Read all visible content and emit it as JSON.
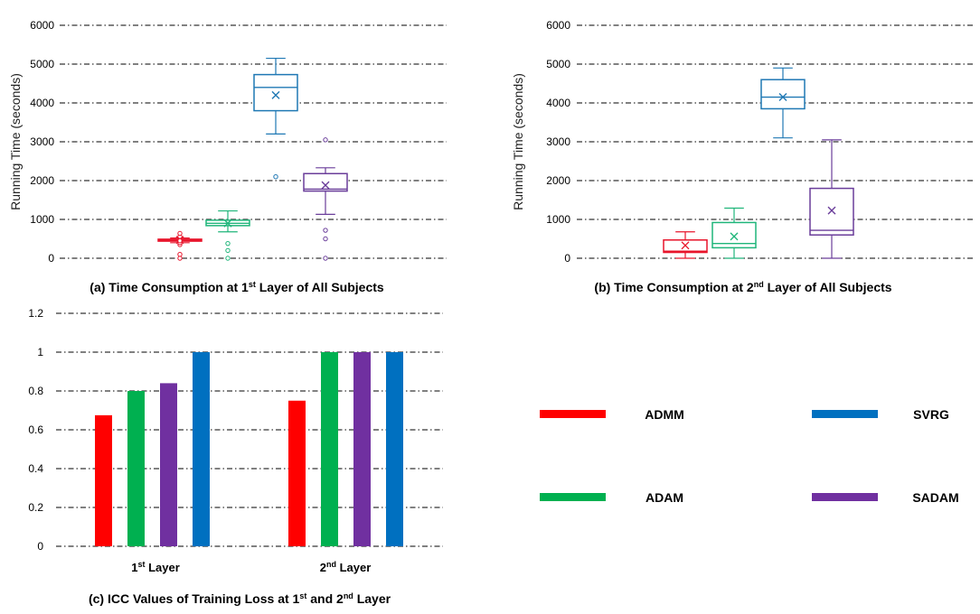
{
  "colors": {
    "ADMM": "#ff0000",
    "ADAM": "#00b050",
    "SADAM": "#7030a0",
    "SVRG": "#0070c0",
    "box_ADMM": "#e8142b",
    "box_ADAM": "#1fb57a",
    "box_SADAM": "#6a3d9a",
    "box_SVRG": "#1f78b4"
  },
  "legend": {
    "items": [
      {
        "name": "ADMM",
        "color": "#ff0000"
      },
      {
        "name": "SVRG",
        "color": "#0070c0"
      },
      {
        "name": "ADAM",
        "color": "#00b050"
      },
      {
        "name": "SADAM",
        "color": "#7030a0"
      }
    ]
  },
  "chart_data": [
    {
      "type": "box",
      "caption_prefix": "(a) Time Consumption at 1",
      "caption_sup": "st",
      "caption_suffix": " Layer of All Subjects",
      "ylabel": "Running Time (seconds)",
      "ylim": [
        0,
        6000
      ],
      "yticks": [
        "0",
        "1000",
        "2000",
        "3000",
        "4000",
        "5000",
        "6000"
      ],
      "grid": true,
      "series": [
        {
          "name": "ADMM",
          "whisker_low": 400,
          "q1": 440,
          "median": 470,
          "q3": 490,
          "whisker_high": 520,
          "mean": 470,
          "outliers": [
            0,
            100,
            350,
            400,
            450,
            560,
            640
          ]
        },
        {
          "name": "ADAM",
          "whisker_low": 680,
          "q1": 840,
          "median": 900,
          "q3": 980,
          "whisker_high": 1220,
          "mean": 900,
          "outliers": [
            0,
            200,
            380
          ]
        },
        {
          "name": "SVRG",
          "whisker_low": 3200,
          "q1": 3800,
          "median": 4400,
          "q3": 4730,
          "whisker_high": 5150,
          "mean": 4200,
          "outliers": [
            2100
          ]
        },
        {
          "name": "SADAM",
          "whisker_low": 1130,
          "q1": 1730,
          "median": 1780,
          "q3": 2180,
          "whisker_high": 2330,
          "mean": 1880,
          "outliers": [
            0,
            500,
            720,
            3050
          ]
        }
      ]
    },
    {
      "type": "box",
      "caption_prefix": "(b) Time Consumption at 2",
      "caption_sup": "nd",
      "caption_suffix": " Layer of All Subjects",
      "ylabel": "Running Time (seconds)",
      "ylim": [
        0,
        6000
      ],
      "yticks": [
        "0",
        "1000",
        "2000",
        "3000",
        "4000",
        "5000",
        "6000"
      ],
      "grid": true,
      "series": [
        {
          "name": "ADMM",
          "whisker_low": 0,
          "q1": 150,
          "median": 180,
          "q3": 470,
          "whisker_high": 680,
          "mean": 330,
          "outliers": []
        },
        {
          "name": "ADAM",
          "whisker_low": 0,
          "q1": 270,
          "median": 380,
          "q3": 920,
          "whisker_high": 1290,
          "mean": 560,
          "outliers": []
        },
        {
          "name": "SVRG",
          "whisker_low": 3100,
          "q1": 3850,
          "median": 4150,
          "q3": 4600,
          "whisker_high": 4900,
          "mean": 4150,
          "outliers": []
        },
        {
          "name": "SADAM",
          "whisker_low": 0,
          "q1": 600,
          "median": 720,
          "q3": 1800,
          "whisker_high": 3050,
          "mean": 1230,
          "outliers": []
        }
      ]
    },
    {
      "type": "bar",
      "caption_parts": [
        "(c) ICC Values of Training Loss at 1",
        "st",
        " and 2",
        "nd",
        " Layer"
      ],
      "categories": [
        {
          "main": "1",
          "sup": "st",
          "rest": " Layer"
        },
        {
          "main": "2",
          "sup": "nd",
          "rest": " Layer"
        }
      ],
      "ylim": [
        0,
        1.2
      ],
      "yticks": [
        "0",
        "0.2",
        "0.4",
        "0.6",
        "0.8",
        "1",
        "1.2"
      ],
      "grid": true,
      "series": [
        {
          "name": "ADMM",
          "values": [
            0.675,
            0.75
          ]
        },
        {
          "name": "ADAM",
          "values": [
            0.8,
            1.0
          ]
        },
        {
          "name": "SADAM",
          "values": [
            0.84,
            1.0
          ]
        },
        {
          "name": "SVRG",
          "values": [
            1.0,
            1.0
          ]
        }
      ]
    }
  ]
}
